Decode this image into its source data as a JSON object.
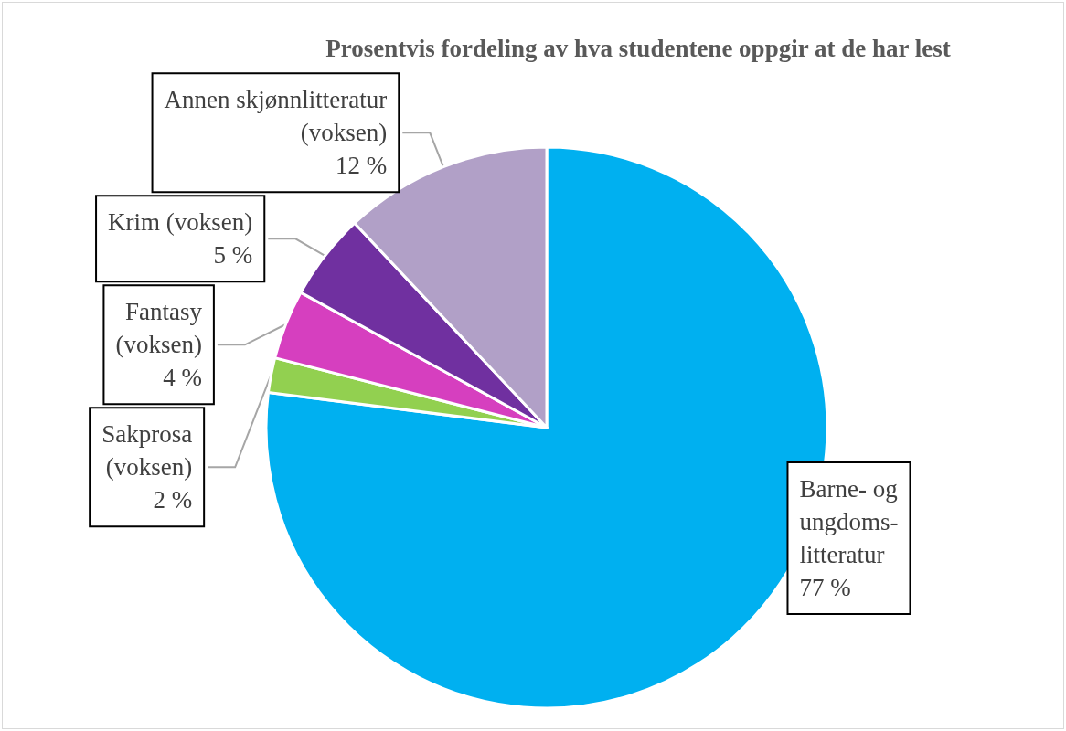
{
  "chart_data": {
    "type": "pie",
    "title": "Prosentvis fordeling av hva studentene oppgir at de har lest",
    "categories": [
      "Barne- og\nungdoms-\nlitteratur",
      "Sakprosa\n(voksen)",
      "Fantasy\n(voksen)",
      "Krim (voksen)",
      "Annen skjønnlitteratur\n(voksen)"
    ],
    "values": [
      77,
      2,
      4,
      5,
      12
    ],
    "value_labels": [
      "77 %",
      "2 %",
      "4 %",
      "5 %",
      "12 %"
    ],
    "colors": [
      "#00b0f0",
      "#92d050",
      "#d63fbf",
      "#7030a0",
      "#b1a0c7"
    ],
    "legend": false
  }
}
